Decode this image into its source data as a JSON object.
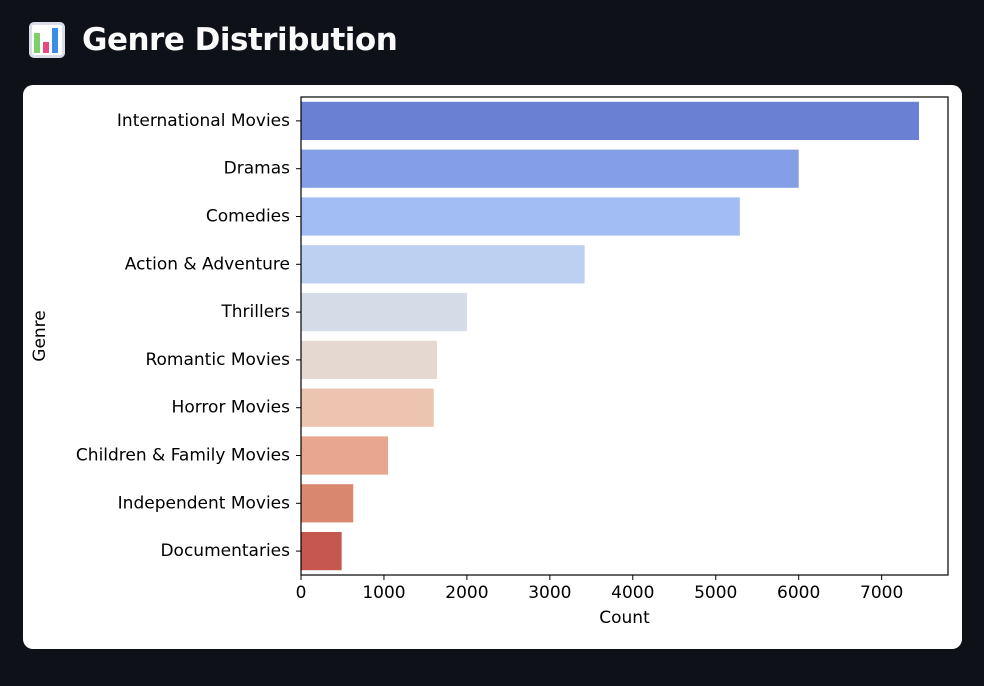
{
  "header": {
    "icon": "bar-chart-emoji-icon",
    "title": "Genre Distribution"
  },
  "chart_data": {
    "type": "bar",
    "orientation": "horizontal",
    "title": "",
    "xlabel": "Count",
    "ylabel": "Genre",
    "categories": [
      "International Movies",
      "Dramas",
      "Comedies",
      "Action & Adventure",
      "Thrillers",
      "Romantic Movies",
      "Horror Movies",
      "Children & Family Movies",
      "Independent Movies",
      "Documentaries"
    ],
    "values": [
      7450,
      6000,
      5290,
      3420,
      2000,
      1640,
      1600,
      1050,
      630,
      490
    ],
    "colors": [
      "#6a81d3",
      "#849fe6",
      "#a2bcf4",
      "#bdd0f2",
      "#d6dce7",
      "#e5d8d0",
      "#edc4b0",
      "#e7a68d",
      "#da876f",
      "#c5574f"
    ],
    "xlim": [
      0,
      7800
    ],
    "xticks": [
      0,
      1000,
      2000,
      3000,
      4000,
      5000,
      6000,
      7000
    ],
    "grid": false,
    "legend": "none"
  }
}
